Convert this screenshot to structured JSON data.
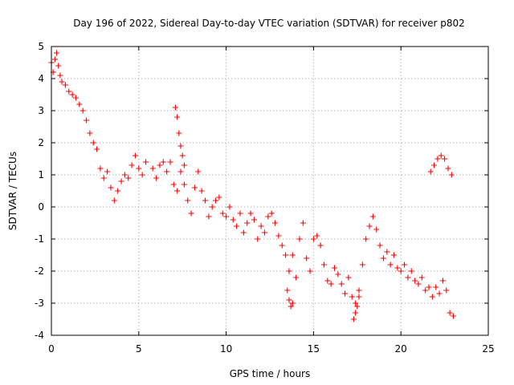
{
  "chart_data": {
    "type": "scatter",
    "title": "Day 196 of 2022, Sidereal Day-to-day VTEC variation (SDTVAR) for receiver p802",
    "xlabel": "GPS time / hours",
    "ylabel": "SDTVAR / TECUs",
    "xlim": [
      0,
      25
    ],
    "ylim": [
      -4,
      5
    ],
    "xticks": [
      0,
      5,
      10,
      15,
      20,
      25
    ],
    "xtick_labels": [
      "0",
      "5",
      "10",
      "15",
      "20",
      "25"
    ],
    "yticks": [
      -4,
      -3,
      -2,
      -1,
      0,
      1,
      2,
      3,
      4,
      5
    ],
    "ytick_labels": [
      "-4",
      "-3",
      "-2",
      "-1",
      "0",
      "1",
      "2",
      "3",
      "4",
      "5"
    ],
    "grid": true,
    "marker": "plus",
    "series": [
      {
        "name": "SDTVAR p802",
        "color": "#ff0000",
        "points": [
          [
            0.0,
            4.5
          ],
          [
            0.1,
            4.2
          ],
          [
            0.2,
            4.6
          ],
          [
            0.3,
            4.8
          ],
          [
            0.4,
            4.4
          ],
          [
            0.5,
            4.1
          ],
          [
            0.6,
            3.9
          ],
          [
            0.8,
            3.8
          ],
          [
            1.0,
            3.6
          ],
          [
            1.2,
            3.5
          ],
          [
            1.4,
            3.4
          ],
          [
            1.6,
            3.2
          ],
          [
            1.8,
            3.0
          ],
          [
            2.0,
            2.7
          ],
          [
            2.2,
            2.3
          ],
          [
            2.4,
            2.0
          ],
          [
            2.6,
            1.8
          ],
          [
            2.8,
            1.2
          ],
          [
            3.0,
            0.9
          ],
          [
            3.2,
            1.1
          ],
          [
            3.4,
            0.6
          ],
          [
            3.6,
            0.2
          ],
          [
            3.8,
            0.5
          ],
          [
            4.0,
            0.8
          ],
          [
            4.2,
            1.0
          ],
          [
            4.4,
            0.9
          ],
          [
            4.6,
            1.3
          ],
          [
            4.8,
            1.6
          ],
          [
            5.0,
            1.2
          ],
          [
            5.2,
            1.0
          ],
          [
            5.4,
            1.4
          ],
          [
            5.8,
            1.2
          ],
          [
            6.0,
            0.9
          ],
          [
            6.2,
            1.3
          ],
          [
            6.4,
            1.4
          ],
          [
            6.6,
            1.1
          ],
          [
            6.8,
            1.4
          ],
          [
            7.0,
            0.7
          ],
          [
            7.2,
            0.5
          ],
          [
            7.4,
            1.1
          ],
          [
            7.6,
            0.7
          ],
          [
            7.8,
            0.2
          ],
          [
            8.0,
            -0.2
          ],
          [
            8.2,
            0.6
          ],
          [
            8.4,
            1.1
          ],
          [
            8.6,
            0.5
          ],
          [
            8.8,
            0.2
          ],
          [
            9.0,
            -0.3
          ],
          [
            9.2,
            0.0
          ],
          [
            9.4,
            0.2
          ],
          [
            9.6,
            0.3
          ],
          [
            9.8,
            -0.2
          ],
          [
            10.0,
            -0.3
          ],
          [
            10.2,
            0.0
          ],
          [
            10.4,
            -0.4
          ],
          [
            10.6,
            -0.6
          ],
          [
            10.8,
            -0.2
          ],
          [
            11.0,
            -0.8
          ],
          [
            11.2,
            -0.5
          ],
          [
            11.4,
            -0.2
          ],
          [
            11.6,
            -0.4
          ],
          [
            11.8,
            -1.0
          ],
          [
            12.0,
            -0.6
          ],
          [
            12.2,
            -0.8
          ],
          [
            12.4,
            -0.3
          ],
          [
            12.6,
            -0.2
          ],
          [
            12.8,
            -0.5
          ],
          [
            13.0,
            -0.9
          ],
          [
            13.2,
            -1.2
          ],
          [
            13.4,
            -1.5
          ],
          [
            13.6,
            -2.0
          ],
          [
            13.8,
            -1.5
          ],
          [
            14.0,
            -2.2
          ],
          [
            14.2,
            -1.0
          ],
          [
            14.4,
            -0.5
          ],
          [
            14.6,
            -1.6
          ],
          [
            14.8,
            -2.0
          ],
          [
            15.0,
            -1.0
          ],
          [
            15.2,
            -0.9
          ],
          [
            15.4,
            -1.2
          ],
          [
            15.6,
            -1.8
          ],
          [
            15.8,
            -2.3
          ],
          [
            16.0,
            -2.4
          ],
          [
            16.2,
            -1.9
          ],
          [
            16.4,
            -2.1
          ],
          [
            16.6,
            -2.4
          ],
          [
            16.8,
            -2.7
          ],
          [
            17.0,
            -2.2
          ],
          [
            17.2,
            -2.8
          ],
          [
            17.4,
            -3.0
          ],
          [
            17.6,
            -2.6
          ],
          [
            17.8,
            -1.8
          ],
          [
            18.0,
            -1.0
          ],
          [
            18.2,
            -0.6
          ],
          [
            18.4,
            -0.3
          ],
          [
            18.6,
            -0.7
          ],
          [
            18.8,
            -1.2
          ],
          [
            19.0,
            -1.6
          ],
          [
            19.2,
            -1.4
          ],
          [
            19.4,
            -1.8
          ],
          [
            19.6,
            -1.5
          ],
          [
            19.8,
            -1.9
          ],
          [
            20.0,
            -2.0
          ],
          [
            20.2,
            -1.8
          ],
          [
            20.4,
            -2.2
          ],
          [
            20.6,
            -2.0
          ],
          [
            20.8,
            -2.3
          ],
          [
            21.0,
            -2.4
          ],
          [
            21.2,
            -2.2
          ],
          [
            21.4,
            -2.6
          ],
          [
            21.6,
            -2.5
          ],
          [
            21.8,
            -2.8
          ],
          [
            22.0,
            -2.5
          ],
          [
            22.2,
            -2.7
          ],
          [
            22.4,
            -2.3
          ],
          [
            22.6,
            -2.6
          ],
          [
            22.8,
            -3.3
          ],
          [
            23.0,
            -3.4
          ],
          [
            21.7,
            1.1
          ],
          [
            21.9,
            1.3
          ],
          [
            22.1,
            1.5
          ],
          [
            22.3,
            1.6
          ],
          [
            22.5,
            1.5
          ],
          [
            22.7,
            1.2
          ],
          [
            22.9,
            1.0
          ],
          [
            7.1,
            3.1
          ],
          [
            7.2,
            2.8
          ],
          [
            7.3,
            2.3
          ],
          [
            7.4,
            1.9
          ],
          [
            7.5,
            1.6
          ],
          [
            7.6,
            1.3
          ],
          [
            13.5,
            -2.6
          ],
          [
            13.6,
            -2.9
          ],
          [
            13.7,
            -3.1
          ],
          [
            13.8,
            -3.0
          ],
          [
            17.3,
            -3.5
          ],
          [
            17.4,
            -3.3
          ],
          [
            17.5,
            -3.1
          ],
          [
            17.6,
            -2.8
          ]
        ]
      }
    ]
  }
}
